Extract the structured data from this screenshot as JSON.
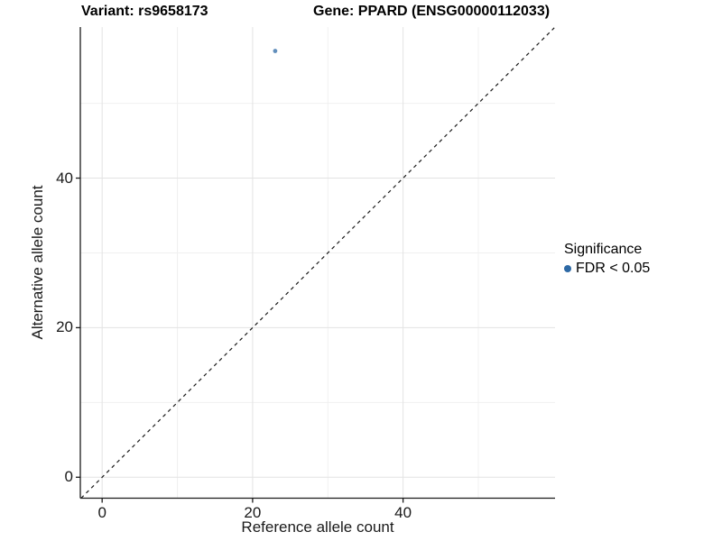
{
  "chart_data": {
    "type": "scatter",
    "title_left": "Variant: rs9658173",
    "title_right": "Gene: PPARD (ENSG00000112033)",
    "xlabel": "Reference allele count",
    "ylabel": "Alternative allele count",
    "xlim": [
      -2.9,
      60.2
    ],
    "ylim": [
      -2.8,
      60.2
    ],
    "x_ticks": [
      0,
      20,
      40
    ],
    "y_ticks": [
      0,
      20,
      40
    ],
    "x_minor_gridlines": [
      10,
      30,
      50
    ],
    "y_minor_gridlines": [
      10,
      30,
      50
    ],
    "grid": true,
    "series": [
      {
        "name": "FDR < 0.05",
        "color": "#2d69a5",
        "point_opacity": 0.75,
        "points": [
          {
            "x": 23,
            "y": 57
          }
        ]
      }
    ],
    "reference_line": {
      "equation": "y = x",
      "style": "dashed",
      "color": "#1a1a1a",
      "from": -2.8,
      "to": 60.1
    },
    "legend": {
      "title": "Significance",
      "position": "right",
      "items": [
        {
          "label": "FDR < 0.05",
          "color": "#2d69a5"
        }
      ]
    },
    "colors": {
      "background": "#ffffff",
      "axis_line": "#1a1a1a",
      "major_grid": "#e3e3e3",
      "minor_grid": "#f0f0f0",
      "tick_text": "#1a1a1a"
    }
  }
}
